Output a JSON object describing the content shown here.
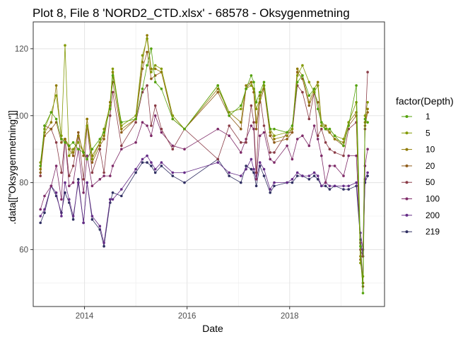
{
  "chart_data": {
    "type": "line",
    "title": "Plot 8, File 8 'NORD2_CTD.xlsx' - 68578  -  Oksygenmetning",
    "xlabel": "Date",
    "ylabel": ".data[[\"Oksygenmetning\"]]",
    "xlim": [
      2013.0,
      2019.85
    ],
    "ylim": [
      43,
      128
    ],
    "x_ticks": [
      2014,
      2016,
      2018
    ],
    "y_ticks": [
      60,
      80,
      100,
      120
    ],
    "grid": true,
    "legend": {
      "title": "factor(Depth)",
      "position": "right"
    },
    "x": [
      2013.14,
      2013.22,
      2013.35,
      2013.45,
      2013.55,
      2013.62,
      2013.7,
      2013.78,
      2013.88,
      2013.98,
      2014.05,
      2014.15,
      2014.3,
      2014.38,
      2014.5,
      2014.55,
      2014.72,
      2015.0,
      2015.13,
      2015.22,
      2015.3,
      2015.38,
      2015.5,
      2015.72,
      2015.95,
      2016.6,
      2016.82,
      2017.05,
      2017.15,
      2017.25,
      2017.3,
      2017.35,
      2017.42,
      2017.5,
      2017.62,
      2017.7,
      2017.95,
      2018.05,
      2018.15,
      2018.25,
      2018.38,
      2018.48,
      2018.55,
      2018.62,
      2018.7,
      2018.78,
      2018.88,
      2019.05,
      2019.15,
      2019.3,
      2019.38,
      2019.43,
      2019.47,
      2019.52
    ],
    "series": [
      {
        "name": "1",
        "color": "#53a10b",
        "values": [
          85,
          97,
          101,
          99,
          93,
          92,
          91,
          92,
          90,
          89,
          87,
          90,
          93,
          95,
          102,
          112,
          98,
          99,
          108,
          115,
          120,
          110,
          108,
          99,
          96,
          109,
          100,
          103,
          108,
          112,
          110,
          104,
          107,
          110,
          96,
          96,
          95,
          97,
          110,
          112,
          106,
          108,
          102,
          98,
          96,
          96,
          94,
          91,
          97,
          109,
          61,
          47,
          99,
          98
        ]
      },
      {
        "name": "5",
        "color": "#839a05",
        "values": [
          86,
          96,
          101,
          106,
          94,
          121,
          88,
          90,
          92,
          89,
          97,
          87,
          92,
          96,
          103,
          114,
          97,
          100,
          118,
          123,
          113,
          115,
          114,
          100,
          96,
          109,
          101,
          102,
          108,
          109,
          108,
          102,
          105,
          109,
          96,
          94,
          95,
          96,
          112,
          115,
          110,
          107,
          109,
          97,
          96,
          96,
          94,
          93,
          98,
          104,
          56,
          52,
          100,
          104
        ]
      },
      {
        "name": "10",
        "color": "#8f7a02",
        "values": [
          84,
          95,
          98,
          109,
          93,
          93,
          91,
          89,
          94,
          89,
          99,
          88,
          92,
          94,
          104,
          113,
          96,
          99,
          116,
          124,
          114,
          114,
          113,
          100,
          96,
          108,
          101,
          98,
          109,
          110,
          108,
          98,
          106,
          109,
          95,
          93,
          94,
          96,
          114,
          112,
          104,
          108,
          110,
          98,
          97,
          95,
          93,
          92,
          98,
          101,
          58,
          50,
          98,
          102
        ]
      },
      {
        "name": "20",
        "color": "#8f5c1a",
        "values": [
          83,
          94,
          96,
          98,
          92,
          93,
          90,
          88,
          95,
          88,
          99,
          86,
          91,
          93,
          104,
          110,
          95,
          99,
          114,
          119,
          111,
          112,
          113,
          99,
          96,
          107,
          100,
          96,
          108,
          110,
          107,
          96,
          104,
          108,
          94,
          92,
          93,
          95,
          113,
          111,
          103,
          107,
          104,
          97,
          96,
          95,
          93,
          91,
          97,
          100,
          57,
          49,
          97,
          101
        ]
      },
      {
        "name": "50",
        "color": "#8a3b46",
        "values": [
          82,
          97,
          96,
          92,
          83,
          93,
          82,
          85,
          94,
          81,
          97,
          83,
          90,
          83,
          100,
          107,
          91,
          98,
          107,
          109,
          97,
          103,
          96,
          90,
          96,
          87,
          97,
          92,
          92,
          103,
          98,
          83,
          106,
          97,
          89,
          89,
          95,
          95,
          109,
          107,
          99,
          107,
          94,
          96,
          92,
          90,
          89,
          88,
          96,
          98,
          60,
          58,
          96,
          113
        ]
      },
      {
        "name": "100",
        "color": "#7e2a68",
        "values": [
          72,
          76,
          79,
          85,
          75,
          93,
          79,
          80,
          90,
          77,
          88,
          79,
          81,
          82,
          82,
          85,
          90,
          92,
          98,
          97,
          94,
          100,
          95,
          91,
          90,
          96,
          94,
          89,
          93,
          97,
          96,
          81,
          94,
          95,
          87,
          86,
          91,
          87,
          93,
          94,
          91,
          97,
          93,
          88,
          80,
          85,
          85,
          82,
          88,
          88,
          62,
          50,
          85,
          90
        ]
      },
      {
        "name": "200",
        "color": "#652c87",
        "values": [
          70,
          72,
          79,
          77,
          70,
          80,
          75,
          70,
          80,
          68,
          80,
          70,
          67,
          62,
          75,
          75,
          78,
          84,
          87,
          88,
          86,
          84,
          86,
          83,
          83,
          86,
          83,
          82,
          84,
          87,
          84,
          81,
          86,
          84,
          78,
          80,
          80,
          81,
          83,
          82,
          82,
          83,
          82,
          79,
          80,
          79,
          79,
          79,
          79,
          80,
          65,
          60,
          81,
          83
        ]
      },
      {
        "name": "219",
        "color": "#2f2e62",
        "values": [
          68,
          71,
          79,
          76,
          71,
          77,
          74,
          69,
          81,
          68,
          80,
          69,
          66,
          61,
          74,
          77,
          76,
          83,
          86,
          86,
          85,
          83,
          85,
          82,
          80,
          87,
          82,
          80,
          85,
          84,
          83,
          79,
          85,
          82,
          77,
          79,
          80,
          80,
          82,
          82,
          81,
          82,
          81,
          79,
          79,
          78,
          79,
          78,
          78,
          79,
          63,
          58,
          80,
          82
        ]
      }
    ]
  }
}
